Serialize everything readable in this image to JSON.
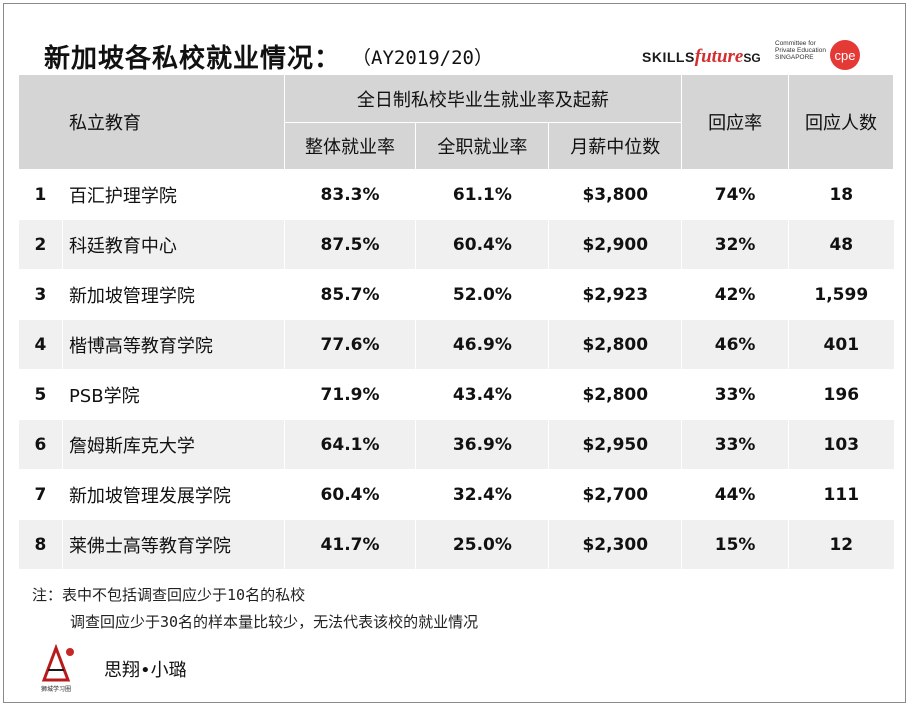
{
  "header": {
    "title": "新加坡各私校就业情况：",
    "subtitle": "（AY2019/20）",
    "logo_skills": {
      "part1": "SKILLS",
      "part2": "future",
      "part3": "SG"
    },
    "logo_cpe": {
      "line1": "Committee for",
      "line2": "Private Education",
      "line3": "SINGAPORE",
      "mark": "cpe"
    }
  },
  "table": {
    "col_school": "私立教育",
    "group_header": "全日制私校毕业生就业率及起薪",
    "col_overall": "整体就业率",
    "col_fulltime": "全职就业率",
    "col_salary": "月薪中位数",
    "col_response_rate": "回应率",
    "col_respondents": "回应人数",
    "rows": [
      {
        "idx": "1",
        "school": "百汇护理学院",
        "overall": "83.3%",
        "fulltime": "61.1%",
        "salary": "$3,800",
        "response_rate": "74%",
        "respondents": "18"
      },
      {
        "idx": "2",
        "school": "科廷教育中心",
        "overall": "87.5%",
        "fulltime": "60.4%",
        "salary": "$2,900",
        "response_rate": "32%",
        "respondents": "48"
      },
      {
        "idx": "3",
        "school": "新加坡管理学院",
        "overall": "85.7%",
        "fulltime": "52.0%",
        "salary": "$2,923",
        "response_rate": "42%",
        "respondents": "1,599"
      },
      {
        "idx": "4",
        "school": "楷博高等教育学院",
        "overall": "77.6%",
        "fulltime": "46.9%",
        "salary": "$2,800",
        "response_rate": "46%",
        "respondents": "401"
      },
      {
        "idx": "5",
        "school": "PSB学院",
        "overall": "71.9%",
        "fulltime": "43.4%",
        "salary": "$2,800",
        "response_rate": "33%",
        "respondents": "196"
      },
      {
        "idx": "6",
        "school": "詹姆斯库克大学",
        "overall": "64.1%",
        "fulltime": "36.9%",
        "salary": "$2,950",
        "response_rate": "33%",
        "respondents": "103"
      },
      {
        "idx": "7",
        "school": "新加坡管理发展学院",
        "overall": "60.4%",
        "fulltime": "32.4%",
        "salary": "$2,700",
        "response_rate": "44%",
        "respondents": "111"
      },
      {
        "idx": "8",
        "school": "莱佛士高等教育学院",
        "overall": "41.7%",
        "fulltime": "25.0%",
        "salary": "$2,300",
        "response_rate": "15%",
        "respondents": "12"
      }
    ]
  },
  "notes": {
    "line1": "注：表中不包括调查回应少于10名的私校",
    "line2": "调查回应少于30名的样本量比较少，无法代表该校的就业情况"
  },
  "footer": {
    "logo_caption": "狮城学习圈",
    "name": "思翔•小璐"
  },
  "colors": {
    "header_bg": "#d5d5d5",
    "row_alt_bg": "#f0f0f0",
    "brand_red": "#d32f2f"
  }
}
